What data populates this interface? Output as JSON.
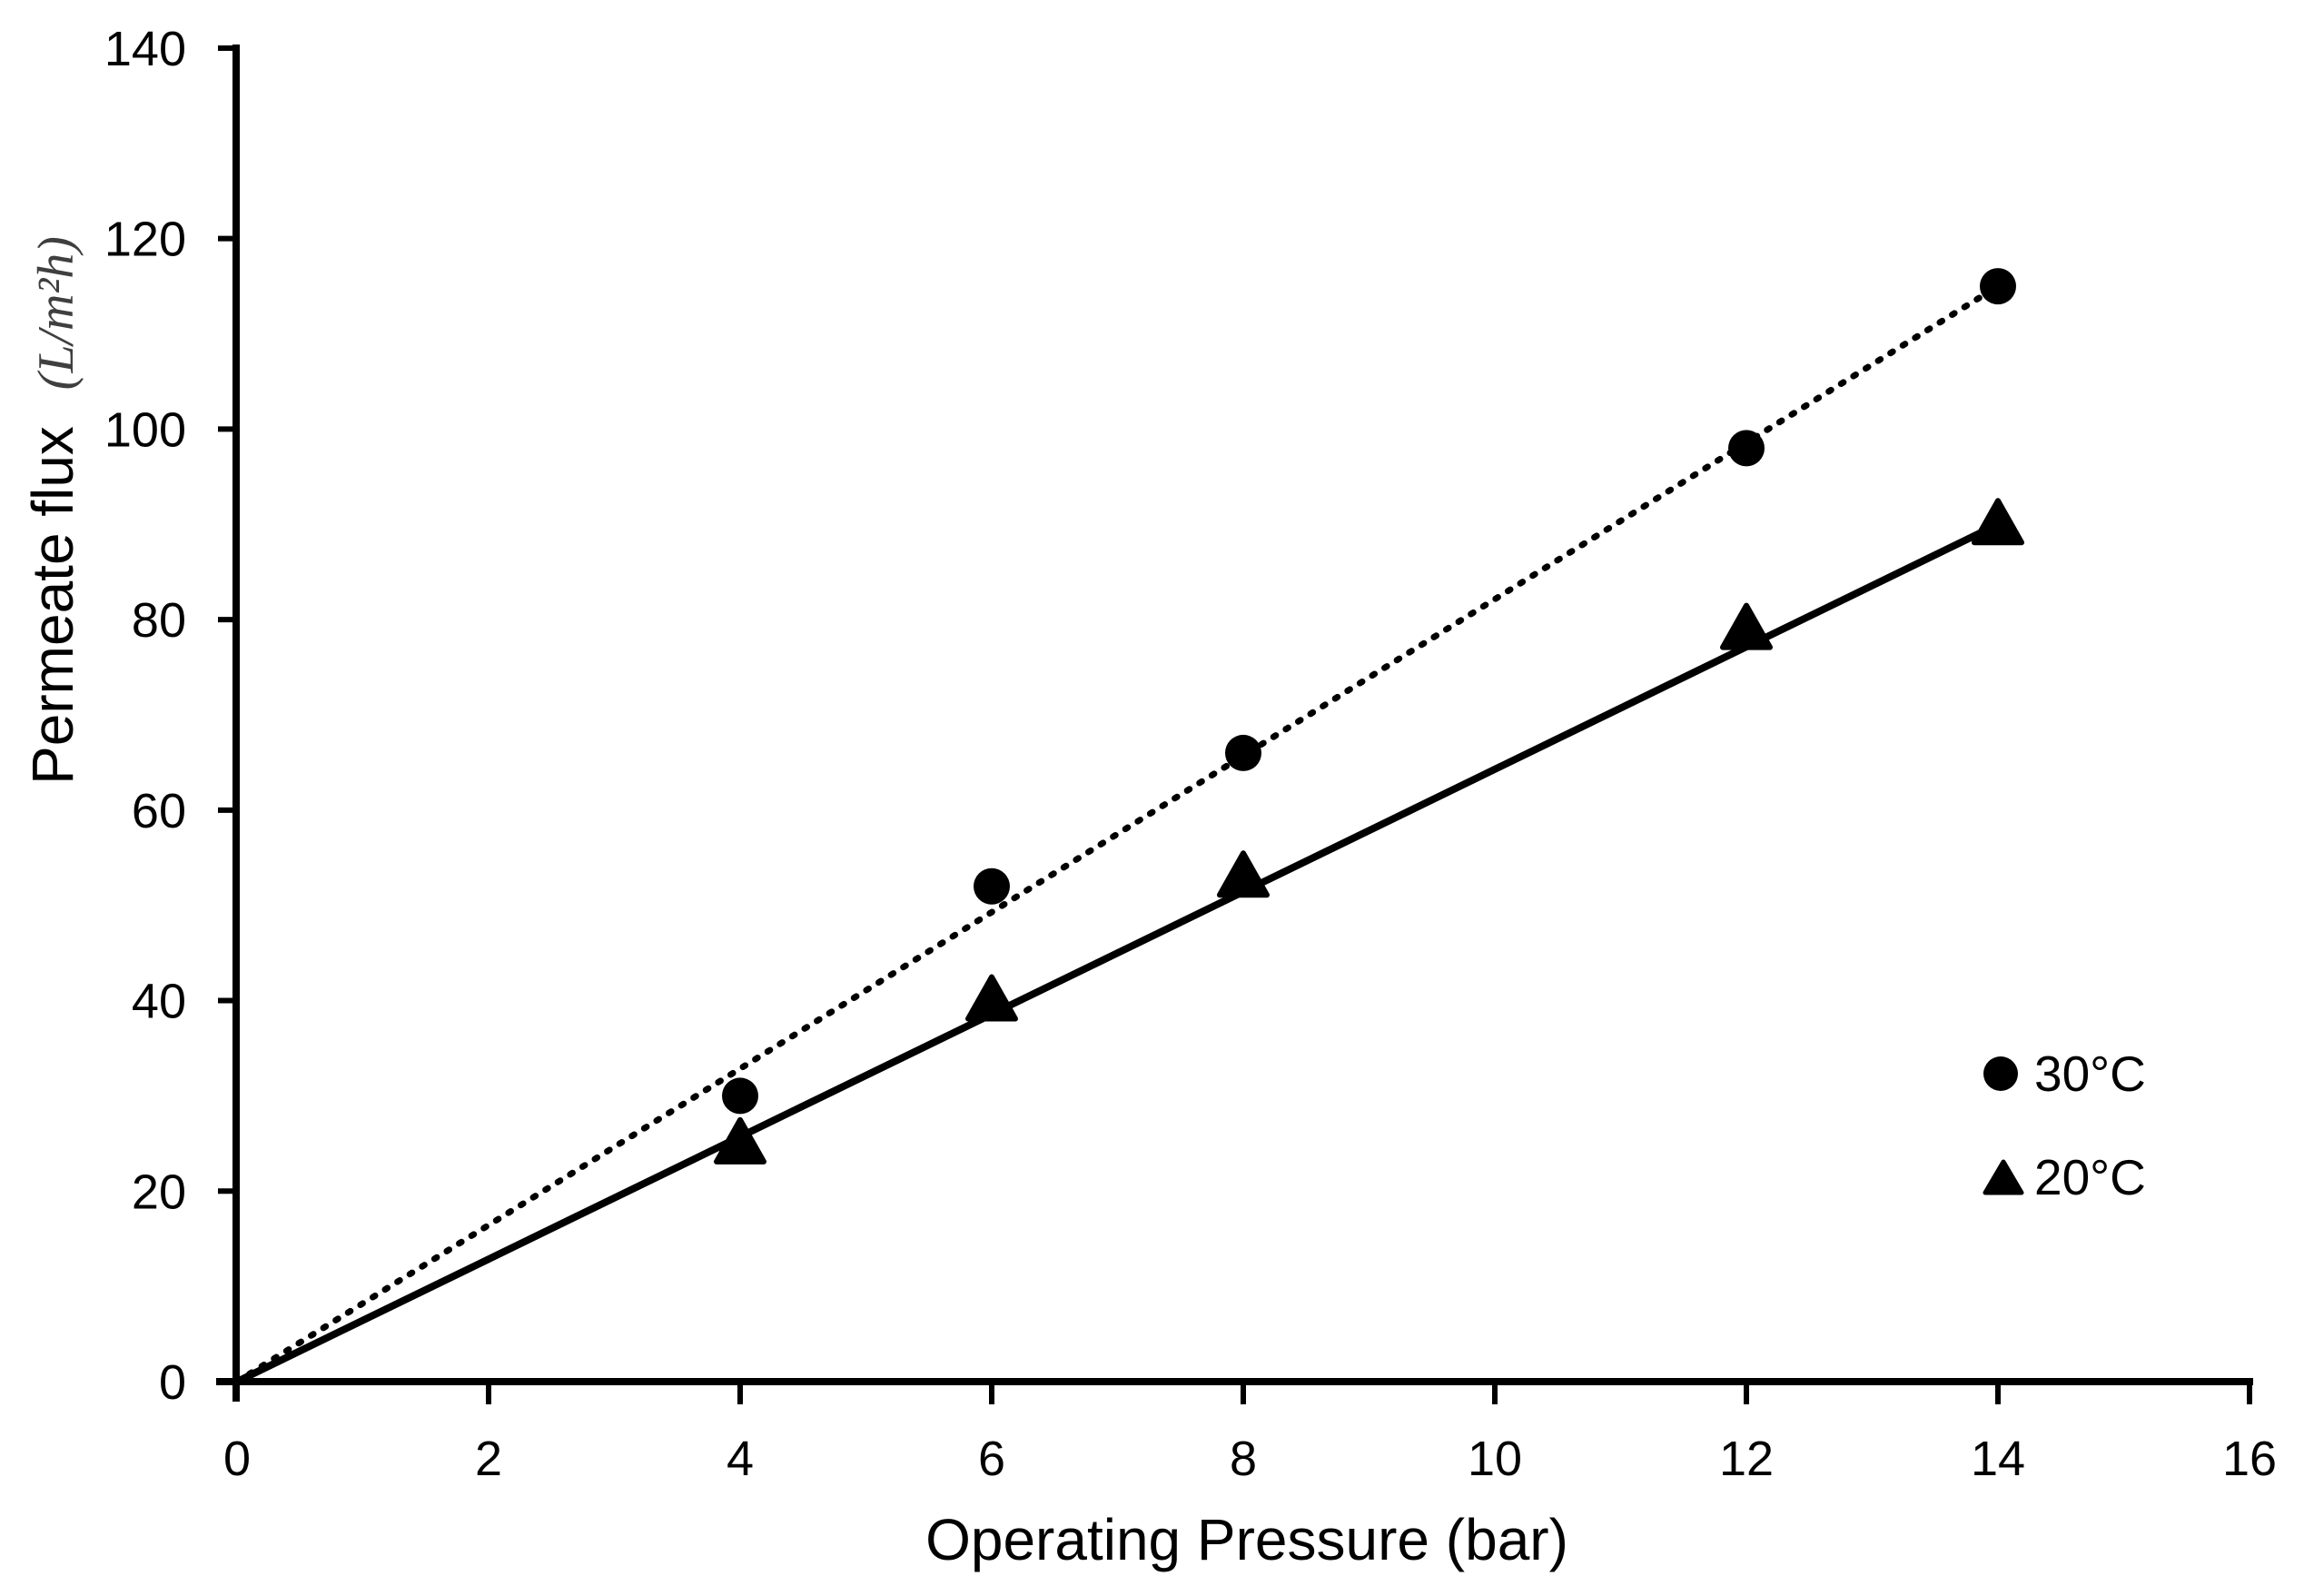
{
  "chart_data": {
    "type": "scatter",
    "title": "",
    "xlabel": "Operating Pressure (bar)",
    "ylabel": "Permeate flux",
    "ylabel_unit": "(L/m²h)",
    "xlim": [
      0,
      16
    ],
    "ylim": [
      0,
      140
    ],
    "xticks": [
      0,
      2,
      4,
      6,
      8,
      10,
      12,
      14,
      16
    ],
    "yticks": [
      0,
      20,
      40,
      60,
      80,
      100,
      120,
      140
    ],
    "grid": false,
    "legend_position": "inside-lower-right",
    "series": [
      {
        "name": "30°C",
        "marker": "circle",
        "line_style": "dotted",
        "points": [
          [
            4,
            30
          ],
          [
            6,
            52
          ],
          [
            8,
            66
          ],
          [
            12,
            98
          ],
          [
            14,
            115
          ]
        ],
        "trendline": {
          "from": [
            0,
            0
          ],
          "to": [
            14,
            115
          ]
        }
      },
      {
        "name": "20°C",
        "marker": "triangle",
        "line_style": "solid",
        "points": [
          [
            4,
            25
          ],
          [
            6,
            40
          ],
          [
            8,
            53
          ],
          [
            12,
            79
          ],
          [
            14,
            90
          ]
        ],
        "trendline": {
          "from": [
            0,
            0
          ],
          "to": [
            14,
            90
          ]
        }
      }
    ],
    "colors": {
      "foreground": "#000000",
      "background": "#ffffff",
      "ylabel_unit_color": "#3f3f3f"
    }
  }
}
